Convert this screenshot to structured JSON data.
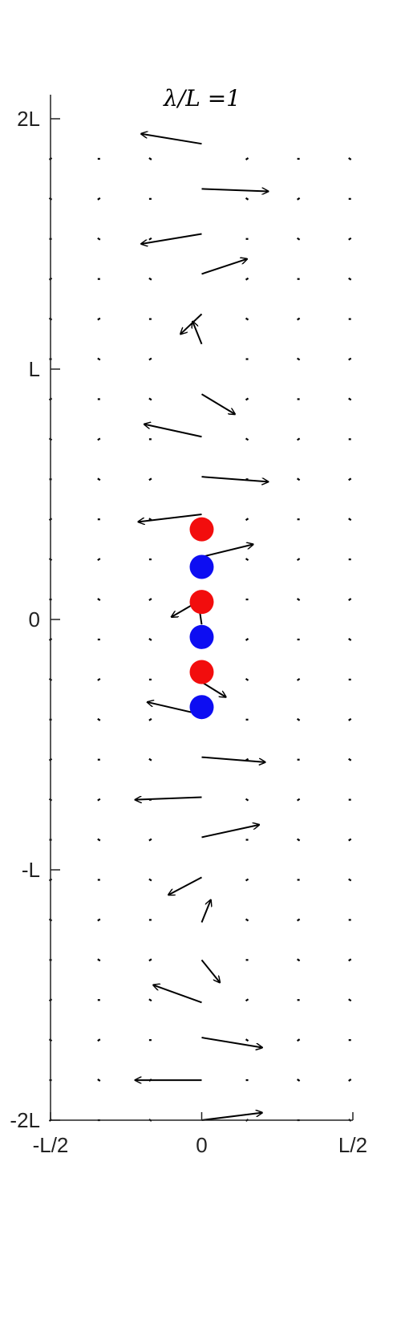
{
  "chart_data": {
    "type": "quiver",
    "title": "λ/L =1",
    "xlabel": "",
    "ylabel": "",
    "x_ticks": [
      {
        "value": -0.5,
        "label": "-L/2"
      },
      {
        "value": 0,
        "label": "0"
      },
      {
        "value": 0.5,
        "label": "L/2"
      }
    ],
    "y_ticks": [
      {
        "value": -2,
        "label": "-2L"
      },
      {
        "value": -1,
        "label": "-L"
      },
      {
        "value": 0,
        "label": "0"
      },
      {
        "value": 1,
        "label": "L"
      },
      {
        "value": 2,
        "label": "2L"
      }
    ],
    "xlim": [
      -0.5,
      0.5
    ],
    "ylim": [
      -2,
      2.1
    ],
    "grid": false,
    "arrows": [
      {
        "x": 0,
        "y": 1.9,
        "u": -0.2,
        "v": 0.04
      },
      {
        "x": 0,
        "y": 1.72,
        "u": 0.22,
        "v": -0.01
      },
      {
        "x": 0,
        "y": 1.54,
        "u": -0.2,
        "v": -0.04
      },
      {
        "x": 0,
        "y": 1.38,
        "u": 0.15,
        "v": 0.06
      },
      {
        "x": 0,
        "y": 1.22,
        "u": -0.07,
        "v": -0.08
      },
      {
        "x": 0,
        "y": 1.1,
        "u": -0.03,
        "v": 0.09
      },
      {
        "x": 0,
        "y": 0.9,
        "u": 0.11,
        "v": -0.08
      },
      {
        "x": 0,
        "y": 0.73,
        "u": -0.19,
        "v": 0.05
      },
      {
        "x": 0,
        "y": 0.57,
        "u": 0.22,
        "v": -0.02
      },
      {
        "x": 0,
        "y": 0.42,
        "u": -0.21,
        "v": -0.03
      },
      {
        "x": 0,
        "y": 0.25,
        "u": 0.17,
        "v": 0.05
      },
      {
        "x": 0,
        "y": 0.08,
        "u": -0.1,
        "v": -0.07
      },
      {
        "x": 0,
        "y": -0.02,
        "u": -0.01,
        "v": 0.08
      },
      {
        "x": 0,
        "y": -0.25,
        "u": 0.08,
        "v": -0.06
      },
      {
        "x": 0,
        "y": -0.38,
        "u": -0.18,
        "v": 0.05
      },
      {
        "x": 0,
        "y": -0.55,
        "u": 0.21,
        "v": -0.02
      },
      {
        "x": 0,
        "y": -0.71,
        "u": -0.22,
        "v": -0.01
      },
      {
        "x": 0,
        "y": -0.87,
        "u": 0.19,
        "v": 0.05
      },
      {
        "x": 0,
        "y": -1.03,
        "u": -0.11,
        "v": -0.07
      },
      {
        "x": 0,
        "y": -1.21,
        "u": 0.03,
        "v": 0.09
      },
      {
        "x": 0,
        "y": -1.36,
        "u": 0.06,
        "v": -0.09
      },
      {
        "x": 0,
        "y": -1.53,
        "u": -0.16,
        "v": 0.07
      },
      {
        "x": 0,
        "y": -1.67,
        "u": 0.2,
        "v": -0.04
      },
      {
        "x": 0,
        "y": -1.84,
        "u": -0.22,
        "v": 0.0
      },
      {
        "x": 0,
        "y": -2.0,
        "u": 0.2,
        "v": 0.03
      }
    ],
    "grid_dots": {
      "x": [
        -0.5,
        -0.34,
        -0.17,
        0.15,
        0.32,
        0.49
      ],
      "y_step": 0.16
    },
    "particles": [
      {
        "x": 0,
        "y": 0.36,
        "color": "#f20d0d",
        "role": "red"
      },
      {
        "x": 0,
        "y": 0.21,
        "color": "#0d0df2",
        "role": "blue"
      },
      {
        "x": 0,
        "y": 0.07,
        "color": "#f20d0d",
        "role": "red"
      },
      {
        "x": 0,
        "y": -0.07,
        "color": "#0d0df2",
        "role": "blue"
      },
      {
        "x": 0,
        "y": -0.21,
        "color": "#f20d0d",
        "role": "red"
      },
      {
        "x": 0,
        "y": -0.35,
        "color": "#0d0df2",
        "role": "blue"
      }
    ],
    "colors": {
      "axis": "#222222",
      "arrow": "#000000",
      "red": "#f20d0d",
      "blue": "#0d0df2"
    }
  }
}
